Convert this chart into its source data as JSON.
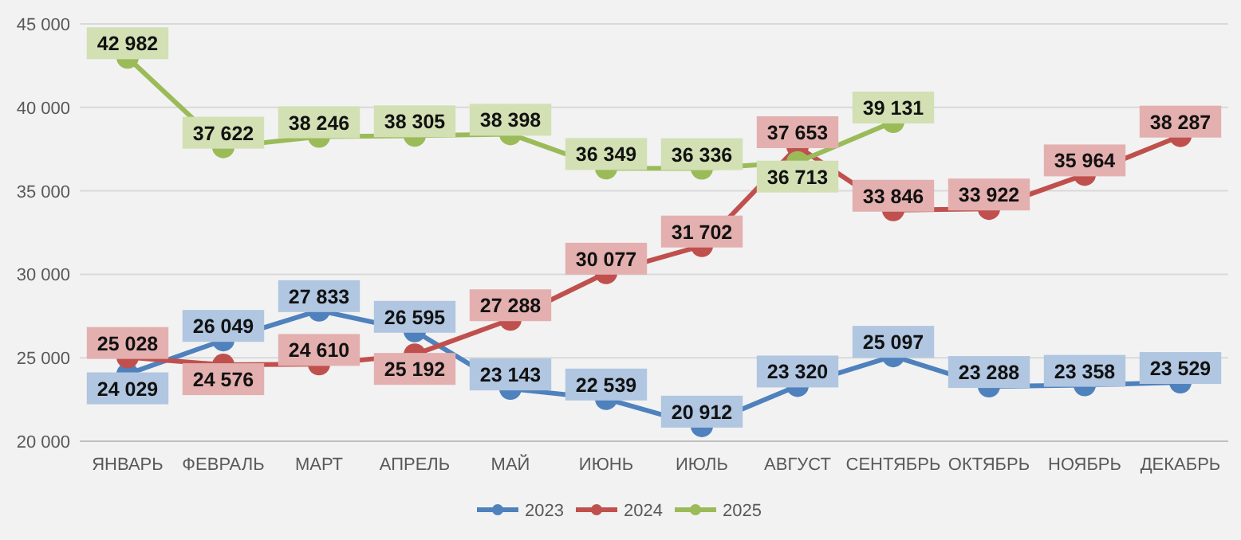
{
  "chart_data": {
    "type": "line",
    "categories": [
      "ЯНВАРЬ",
      "ФЕВРАЛЬ",
      "МАРТ",
      "АПРЕЛЬ",
      "МАЙ",
      "ИЮНЬ",
      "ИЮЛЬ",
      "АВГУСТ",
      "СЕНТЯБРЬ",
      "ОКТЯБРЬ",
      "НОЯБРЬ",
      "ДЕКАБРЬ"
    ],
    "series": [
      {
        "name": "2023",
        "color": "#4f81bd",
        "values": [
          24029,
          26049,
          27833,
          26595,
          23143,
          22539,
          20912,
          23320,
          25097,
          23288,
          23358,
          23529
        ]
      },
      {
        "name": "2024",
        "color": "#c0504d",
        "values": [
          25028,
          24576,
          24610,
          25192,
          27288,
          30077,
          31702,
          37653,
          33846,
          33922,
          35964,
          38287
        ]
      },
      {
        "name": "2025",
        "color": "#9bbb59",
        "values": [
          42982,
          37622,
          38246,
          38305,
          38398,
          36349,
          36336,
          36713,
          39131,
          null,
          null,
          null
        ]
      }
    ],
    "ylim": [
      20000,
      45000
    ],
    "yticks": [
      {
        "value": 20000,
        "label": "20 000"
      },
      {
        "value": 25000,
        "label": "25 000"
      },
      {
        "value": 30000,
        "label": "30 000"
      },
      {
        "value": 35000,
        "label": "35 000"
      },
      {
        "value": 40000,
        "label": "40 000"
      },
      {
        "value": 45000,
        "label": "45 000"
      }
    ],
    "grid": "y",
    "legend": "bottom",
    "marker": "circle",
    "line_style": "solid",
    "data_labels": true
  }
}
